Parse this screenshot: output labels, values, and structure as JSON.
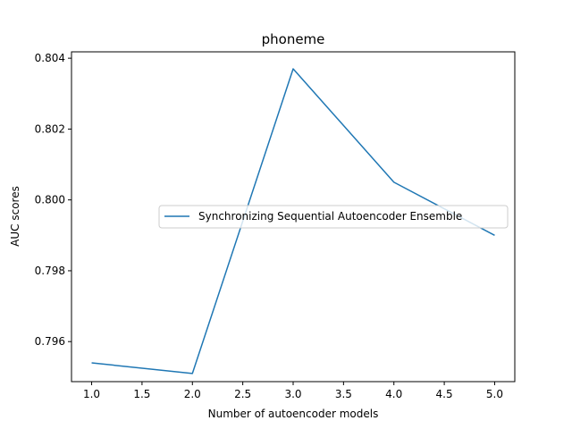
{
  "chart_data": {
    "type": "line",
    "title": "phoneme",
    "xlabel": "Number of autoencoder models",
    "ylabel": "AUC scores",
    "xlim": [
      0.8,
      5.2
    ],
    "ylim": [
      0.79487,
      0.80418
    ],
    "xticks": [
      1.0,
      1.5,
      2.0,
      2.5,
      3.0,
      3.5,
      4.0,
      4.5,
      5.0
    ],
    "xtick_labels": [
      "1.0",
      "1.5",
      "2.0",
      "2.5",
      "3.0",
      "3.5",
      "4.0",
      "4.5",
      "5.0"
    ],
    "yticks": [
      0.796,
      0.798,
      0.8,
      0.802,
      0.804
    ],
    "ytick_labels": [
      "0.796",
      "0.798",
      "0.800",
      "0.802",
      "0.804"
    ],
    "grid": false,
    "legend_position": "center-right",
    "series": [
      {
        "name": "Synchronizing Sequential Autoencoder Ensemble",
        "color": "#1f77b4",
        "x": [
          1,
          2,
          3,
          4,
          5
        ],
        "y": [
          0.7954,
          0.7951,
          0.8037,
          0.8005,
          0.799
        ]
      }
    ]
  }
}
